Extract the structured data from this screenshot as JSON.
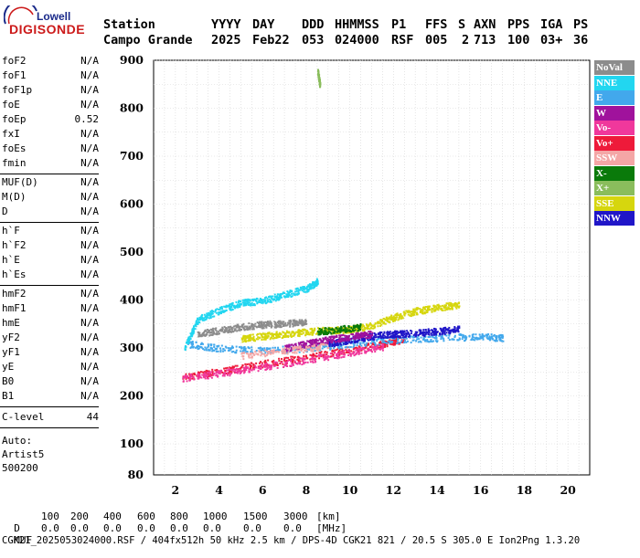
{
  "logo": {
    "line1": "Lowell",
    "line2": "DIGISONDE"
  },
  "header": {
    "row1": [
      "Station",
      "YYYY",
      "DAY",
      "DDD",
      "HHMMSS",
      "P1",
      "FFS",
      "S",
      "AXN",
      "PPS",
      "IGA",
      "PS"
    ],
    "row2": [
      "Campo Grande",
      "2025",
      "Feb22",
      "053",
      "024000",
      "RSF",
      "005",
      "2",
      "713",
      "100",
      "03+",
      "36"
    ]
  },
  "params_group1": [
    {
      "name": "foF2",
      "value": "N/A"
    },
    {
      "name": "foF1",
      "value": "N/A"
    },
    {
      "name": "foF1p",
      "value": "N/A"
    },
    {
      "name": "foE",
      "value": "N/A"
    },
    {
      "name": "foEp",
      "value": "0.52"
    },
    {
      "name": "fxI",
      "value": "N/A"
    },
    {
      "name": "foEs",
      "value": "N/A"
    },
    {
      "name": "fmin",
      "value": "N/A"
    }
  ],
  "params_group2": [
    {
      "name": "MUF(D)",
      "value": "N/A"
    },
    {
      "name": "M(D)",
      "value": "N/A"
    },
    {
      "name": "D",
      "value": "N/A"
    }
  ],
  "params_group3": [
    {
      "name": "h`F",
      "value": "N/A"
    },
    {
      "name": "h`F2",
      "value": "N/A"
    },
    {
      "name": "h`E",
      "value": "N/A"
    },
    {
      "name": "h`Es",
      "value": "N/A"
    }
  ],
  "params_group4": [
    {
      "name": "hmF2",
      "value": "N/A"
    },
    {
      "name": "hmF1",
      "value": "N/A"
    },
    {
      "name": "hmE",
      "value": "N/A"
    },
    {
      "name": "yF2",
      "value": "N/A"
    },
    {
      "name": "yF1",
      "value": "N/A"
    },
    {
      "name": "yE",
      "value": "N/A"
    },
    {
      "name": "B0",
      "value": "N/A"
    },
    {
      "name": "B1",
      "value": "N/A"
    }
  ],
  "clevel": {
    "name": "C-level",
    "value": "44"
  },
  "autoscaling": {
    "line1": "Auto:",
    "line2": "Artist5",
    "line3": "500200"
  },
  "legend": [
    {
      "label": "NoVal",
      "color": "#8c8c8c"
    },
    {
      "label": "NNE",
      "color": "#22d6f0"
    },
    {
      "label": "E",
      "color": "#42a8ec"
    },
    {
      "label": "W",
      "color": "#a0129c"
    },
    {
      "label": "Vo-",
      "color": "#f0389c"
    },
    {
      "label": "Vo+",
      "color": "#ee1a3a"
    },
    {
      "label": "SSW",
      "color": "#f4a6a6"
    },
    {
      "label": "X-",
      "color": "#0a7a0a"
    },
    {
      "label": "X+",
      "color": "#8abd5c"
    },
    {
      "label": "SSE",
      "color": "#d6d60e"
    },
    {
      "label": "NNW",
      "color": "#2016c8"
    }
  ],
  "muf_table": {
    "d_label": "D",
    "d_values": [
      "100",
      "200",
      "400",
      "600",
      "800",
      "1000",
      "1500",
      "3000",
      "[km]"
    ],
    "muf_label": "MUF",
    "muf_values": [
      "0.0",
      "0.0",
      "0.0",
      "0.0",
      "0.0",
      "0.0",
      "0.0",
      "0.0",
      "[MHz]"
    ]
  },
  "footer": "CGK21_2025053024000.RSF / 404fx512h 50 kHz 2.5 km / DPS-4D CGK21 821 / 20.5 S 305.0 E Ion2Png 1.3.20",
  "chart_data": {
    "type": "scatter",
    "xlim": [
      1,
      21
    ],
    "ylim": [
      80,
      900
    ],
    "x_ticks": [
      2,
      4,
      6,
      8,
      10,
      12,
      14,
      16,
      18,
      20
    ],
    "y_ticks": [
      100,
      200,
      300,
      400,
      500,
      600,
      700,
      800,
      900
    ],
    "y_tick_extra_label": "80",
    "grid": true,
    "series": [
      {
        "color": "#ee1a3a",
        "traces": [
          [
            2.3,
            240
          ],
          [
            4,
            252
          ],
          [
            6,
            268
          ],
          [
            8,
            282
          ],
          [
            10,
            298
          ],
          [
            11.5,
            310
          ],
          [
            12.5,
            320
          ]
        ]
      },
      {
        "color": "#f0389c",
        "traces": [
          [
            2.3,
            238
          ],
          [
            4,
            248
          ],
          [
            6,
            262
          ],
          [
            8,
            276
          ],
          [
            10,
            292
          ],
          [
            11.5,
            304
          ]
        ]
      },
      {
        "color": "#42a8ec",
        "traces": [
          [
            2.5,
            310
          ],
          [
            4,
            300
          ],
          [
            6,
            296
          ],
          [
            8,
            300
          ],
          [
            10,
            310
          ],
          [
            12,
            318
          ],
          [
            14,
            322
          ],
          [
            16,
            325
          ],
          [
            17,
            322
          ]
        ]
      },
      {
        "color": "#22d6f0",
        "traces": [
          [
            2.4,
            300
          ],
          [
            3,
            360
          ],
          [
            4,
            380
          ],
          [
            5,
            395
          ],
          [
            6,
            400
          ],
          [
            7,
            412
          ],
          [
            8,
            425
          ],
          [
            8.5,
            440
          ]
        ]
      },
      {
        "color": "#d6d60e",
        "traces": [
          [
            5,
            320
          ],
          [
            6,
            326
          ],
          [
            7,
            330
          ],
          [
            8,
            335
          ],
          [
            9,
            338
          ],
          [
            10,
            340
          ],
          [
            11,
            348
          ],
          [
            12,
            365
          ],
          [
            13,
            378
          ],
          [
            14,
            385
          ],
          [
            15,
            392
          ]
        ]
      },
      {
        "color": "#2016c8",
        "traces": [
          [
            9,
            310
          ],
          [
            10,
            318
          ],
          [
            11,
            326
          ],
          [
            12,
            330
          ],
          [
            13,
            332
          ],
          [
            14,
            336
          ],
          [
            15,
            340
          ]
        ]
      },
      {
        "color": "#a0129c",
        "traces": [
          [
            7,
            300
          ],
          [
            8,
            310
          ],
          [
            9,
            318
          ],
          [
            10,
            325
          ],
          [
            11,
            330
          ]
        ]
      },
      {
        "color": "#0a7a0a",
        "traces": [
          [
            8.5,
            335
          ],
          [
            9.5,
            340
          ],
          [
            10.5,
            345
          ]
        ]
      },
      {
        "color": "#8c8c8c",
        "traces": [
          [
            3,
            330
          ],
          [
            4,
            338
          ],
          [
            5,
            345
          ],
          [
            6,
            350
          ],
          [
            7,
            352
          ],
          [
            8,
            356
          ]
        ]
      },
      {
        "color": "#f4a6a6",
        "traces": [
          [
            5,
            285
          ],
          [
            7,
            295
          ],
          [
            9,
            305
          ]
        ]
      },
      {
        "color": "#8abd5c",
        "traces": [
          [
            8.5,
            880
          ],
          [
            8.6,
            850
          ]
        ]
      }
    ]
  }
}
